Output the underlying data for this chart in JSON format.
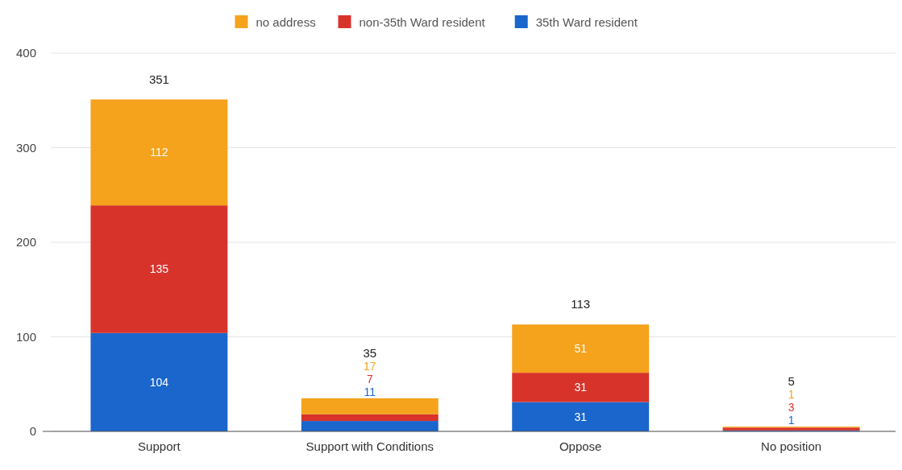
{
  "chart_data": {
    "type": "bar",
    "stacked": true,
    "categories": [
      "Support",
      "Support with Conditions",
      "Oppose",
      "No position"
    ],
    "series": [
      {
        "name": "35th Ward resident",
        "color": "#1a66cc",
        "values": [
          104,
          11,
          31,
          1
        ]
      },
      {
        "name": "non-35th Ward resident",
        "color": "#d8332a",
        "values": [
          135,
          7,
          31,
          3
        ]
      },
      {
        "name": "no address",
        "color": "#f5a21d",
        "values": [
          112,
          17,
          51,
          1
        ]
      }
    ],
    "totals": [
      "351",
      "35",
      "113",
      "5"
    ],
    "data_labels": true,
    "ylim": [
      0,
      400
    ],
    "yticks": [
      0,
      100,
      200,
      300,
      400
    ],
    "grid": "y",
    "legend": "top"
  }
}
